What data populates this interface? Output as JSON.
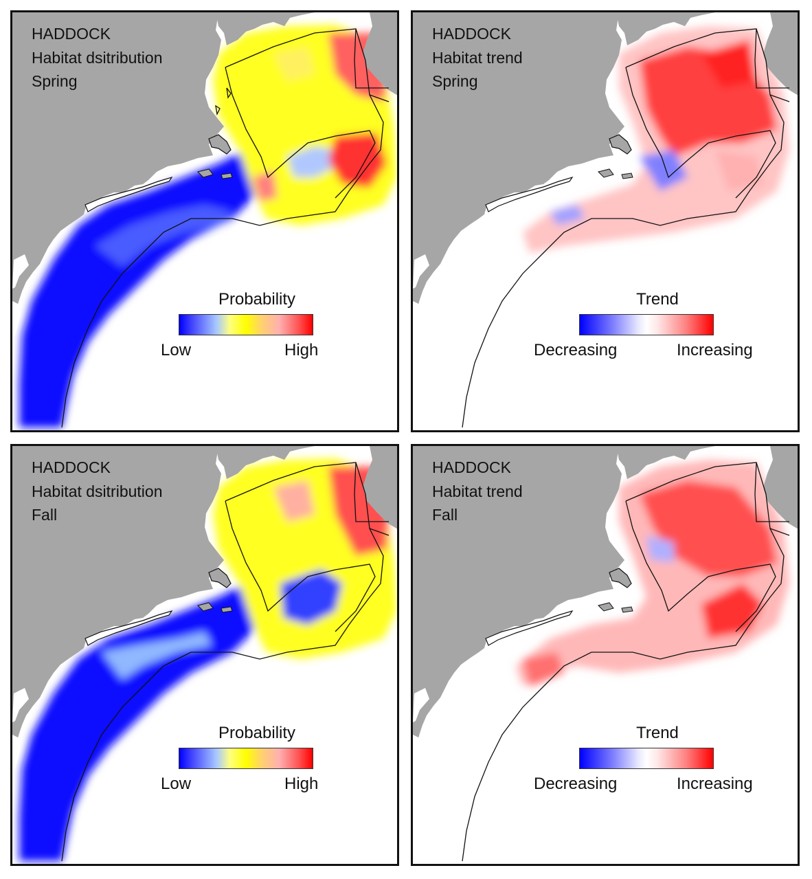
{
  "panels": [
    {
      "species": "HADDOCK",
      "type": "Habitat dsitribution",
      "season": "Spring",
      "legend": {
        "title": "Probability",
        "low": "Low",
        "high": "High"
      }
    },
    {
      "species": "HADDOCK",
      "type": "Habitat trend",
      "season": "Spring",
      "legend": {
        "title": "Trend",
        "low": "Decreasing",
        "high": "Increasing"
      }
    },
    {
      "species": "HADDOCK",
      "type": "Habitat dsitribution",
      "season": "Fall",
      "legend": {
        "title": "Probability",
        "low": "Low",
        "high": "High"
      }
    },
    {
      "species": "HADDOCK",
      "type": "Habitat trend",
      "season": "Fall",
      "legend": {
        "title": "Trend",
        "low": "Decreasing",
        "high": "Increasing"
      }
    }
  ],
  "colors": {
    "land": "#a6a6a6",
    "water": "#ffffff",
    "low_probability": "#0000ff",
    "mid_probability": "#ffff00",
    "high_probability": "#ff0000",
    "decreasing": "#0000ff",
    "increasing": "#ff0000"
  }
}
